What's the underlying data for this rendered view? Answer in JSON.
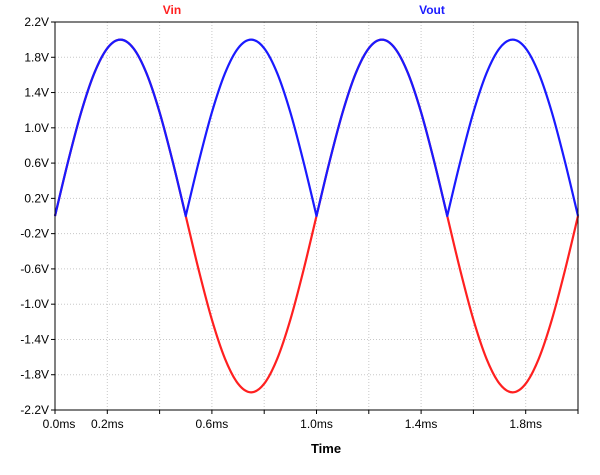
{
  "chart_data": {
    "type": "line",
    "title": "",
    "xlabel": "Time",
    "ylabel": "",
    "x_unit": "ms",
    "y_unit": "V",
    "xlim": [
      0,
      2.0
    ],
    "ylim": [
      -2.2,
      2.2
    ],
    "grid": true,
    "legend_position": "top",
    "x_tick_labels": [
      "0.0ms",
      "0.2ms",
      "0.6ms",
      "1.0ms",
      "1.4ms",
      "1.8ms"
    ],
    "y_tick_labels": [
      "2.2V",
      "1.8V",
      "1.4V",
      "1.0V",
      "0.6V",
      "0.2V",
      "-0.2V",
      "-0.6V",
      "-1.0V",
      "-1.4V",
      "-1.8V",
      "-2.2V"
    ],
    "series": [
      {
        "name": "Vin",
        "color": "#ff2020",
        "x": [
          0,
          0.05,
          0.1,
          0.15,
          0.2,
          0.25,
          0.3,
          0.35,
          0.4,
          0.45,
          0.5,
          0.55,
          0.6,
          0.65,
          0.7,
          0.75,
          0.8,
          0.85,
          0.9,
          0.95,
          1.0,
          1.05,
          1.1,
          1.15,
          1.2,
          1.25,
          1.3,
          1.35,
          1.4,
          1.45,
          1.5,
          1.55,
          1.6,
          1.65,
          1.7,
          1.75,
          1.8,
          1.85,
          1.9,
          1.95,
          2.0
        ],
        "y": [
          0,
          0.618,
          1.176,
          1.618,
          1.902,
          2.0,
          1.902,
          1.618,
          1.176,
          0.618,
          0,
          -0.618,
          -1.176,
          -1.618,
          -1.902,
          -2.0,
          -1.902,
          -1.618,
          -1.176,
          -0.618,
          0,
          0.618,
          1.176,
          1.618,
          1.902,
          2.0,
          1.902,
          1.618,
          1.176,
          0.618,
          0,
          -0.618,
          -1.176,
          -1.618,
          -1.902,
          -2.0,
          -1.902,
          -1.618,
          -1.176,
          -0.618,
          0
        ]
      },
      {
        "name": "Vout",
        "color": "#1a1aff",
        "x": [
          0,
          0.05,
          0.1,
          0.15,
          0.2,
          0.25,
          0.3,
          0.35,
          0.4,
          0.45,
          0.5,
          0.55,
          0.6,
          0.65,
          0.7,
          0.75,
          0.8,
          0.85,
          0.9,
          0.95,
          1.0,
          1.05,
          1.1,
          1.15,
          1.2,
          1.25,
          1.3,
          1.35,
          1.4,
          1.45,
          1.5,
          1.55,
          1.6,
          1.65,
          1.7,
          1.75,
          1.8,
          1.85,
          1.9,
          1.95,
          2.0
        ],
        "y": [
          0,
          0.618,
          1.176,
          1.618,
          1.902,
          2.0,
          1.902,
          1.618,
          1.176,
          0.618,
          0,
          0.618,
          1.176,
          1.618,
          1.902,
          2.0,
          1.902,
          1.618,
          1.176,
          0.618,
          0,
          0.618,
          1.176,
          1.618,
          1.902,
          2.0,
          1.902,
          1.618,
          1.176,
          0.618,
          0,
          0.618,
          1.176,
          1.618,
          1.902,
          2.0,
          1.902,
          1.618,
          1.176,
          0.618,
          0
        ]
      }
    ]
  }
}
